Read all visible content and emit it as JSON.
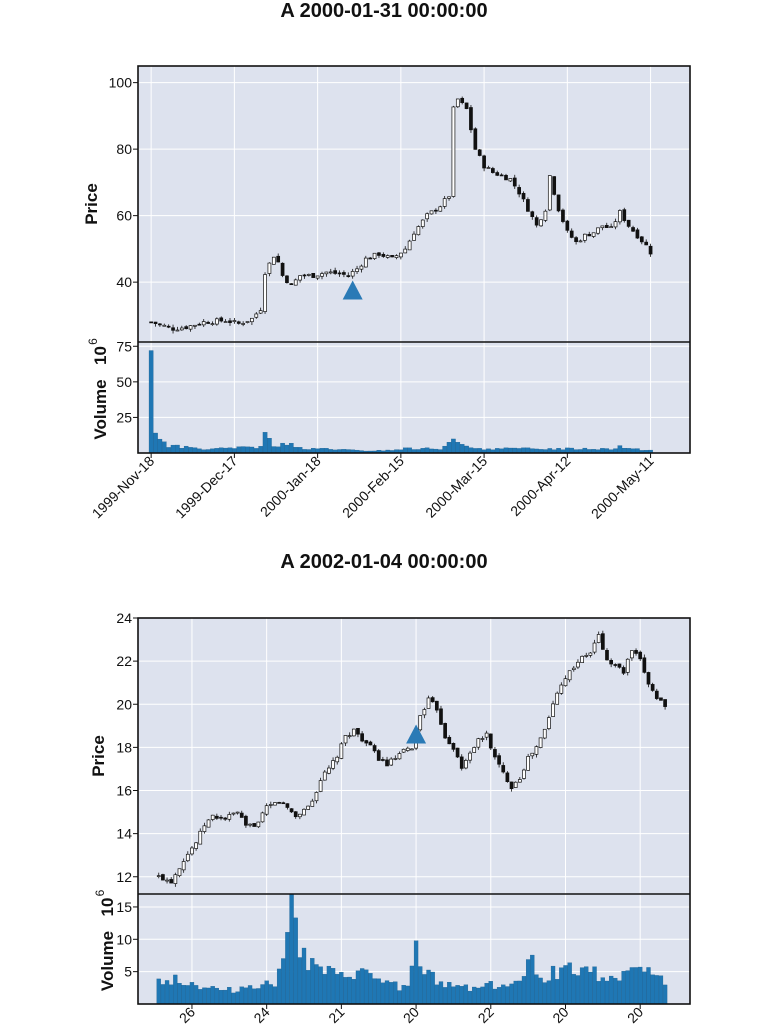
{
  "colors": {
    "panel_bg": "#dde2ee",
    "grid": "#ffffff",
    "candle": "#111111",
    "volume": "#1f77b4",
    "marker": "#2a7ab6"
  },
  "chart_data": [
    {
      "type": "candlestick",
      "title": "A 2000-01-31 00:00:00",
      "ylabel": "Price",
      "volume_label": "Volume",
      "volume_exponent": "10",
      "volume_exponent_power": "6",
      "price_ylim": [
        22,
        105
      ],
      "price_ticks": [
        40,
        60,
        80,
        100
      ],
      "volume_ylim": [
        0,
        78
      ],
      "volume_ticks": [
        25,
        50,
        75
      ],
      "x_range": [
        -3,
        123
      ],
      "x_tick_positions": [
        0,
        19,
        38,
        57,
        76,
        95,
        114
      ],
      "x_tick_labels": [
        "1999-Nov-18",
        "1999-Dec-17",
        "2000-Jan-18",
        "2000-Feb-15",
        "2000-Mar-15",
        "2000-Apr-12",
        "2000-May-11"
      ],
      "marker": {
        "index": 46,
        "price": 37.5
      },
      "price_anchors": [
        [
          0,
          28
        ],
        [
          5,
          26
        ],
        [
          8,
          26.5
        ],
        [
          12,
          28
        ],
        [
          17,
          28.5
        ],
        [
          20,
          27.5
        ],
        [
          23,
          29
        ],
        [
          25,
          32
        ],
        [
          26,
          43
        ],
        [
          28,
          48
        ],
        [
          29,
          46
        ],
        [
          30,
          42
        ],
        [
          32,
          39
        ],
        [
          34,
          42
        ],
        [
          37,
          42
        ],
        [
          40,
          43
        ],
        [
          43,
          42.5
        ],
        [
          45,
          42
        ],
        [
          47,
          44
        ],
        [
          49,
          47
        ],
        [
          52,
          48.5
        ],
        [
          55,
          47
        ],
        [
          58,
          50
        ],
        [
          60,
          55
        ],
        [
          63,
          60
        ],
        [
          66,
          63
        ],
        [
          68,
          66
        ],
        [
          69,
          92
        ],
        [
          70,
          95
        ],
        [
          72,
          92
        ],
        [
          74,
          80
        ],
        [
          76,
          75
        ],
        [
          78,
          73
        ],
        [
          80,
          72
        ],
        [
          82,
          71
        ],
        [
          84,
          67
        ],
        [
          86,
          62
        ],
        [
          88,
          57
        ],
        [
          90,
          62
        ],
        [
          91,
          72
        ],
        [
          93,
          62
        ],
        [
          95,
          55
        ],
        [
          97,
          52
        ],
        [
          99,
          54
        ],
        [
          101,
          55
        ],
        [
          103,
          57
        ],
        [
          105,
          56
        ],
        [
          107,
          61
        ],
        [
          109,
          57
        ],
        [
          111,
          54
        ],
        [
          113,
          51
        ],
        [
          114,
          49
        ]
      ],
      "volume_anchors": [
        [
          0,
          72
        ],
        [
          1,
          17
        ],
        [
          2,
          9
        ],
        [
          3,
          7
        ],
        [
          4,
          5
        ],
        [
          8,
          4
        ],
        [
          12,
          3
        ],
        [
          16,
          3
        ],
        [
          19,
          3
        ],
        [
          21,
          5
        ],
        [
          23,
          4
        ],
        [
          25,
          4
        ],
        [
          26,
          12
        ],
        [
          27,
          9
        ],
        [
          28,
          5
        ],
        [
          30,
          6
        ],
        [
          32,
          7
        ],
        [
          33,
          4
        ],
        [
          35,
          2.5
        ],
        [
          40,
          3
        ],
        [
          45,
          2
        ],
        [
          50,
          1.5
        ],
        [
          55,
          2
        ],
        [
          58,
          3
        ],
        [
          62,
          3
        ],
        [
          66,
          3
        ],
        [
          68,
          9
        ],
        [
          70,
          7
        ],
        [
          72,
          4
        ],
        [
          76,
          3
        ],
        [
          80,
          3
        ],
        [
          85,
          3
        ],
        [
          90,
          3
        ],
        [
          95,
          3
        ],
        [
          100,
          3
        ],
        [
          105,
          3
        ],
        [
          107,
          5
        ],
        [
          109,
          3
        ],
        [
          114,
          2
        ]
      ]
    },
    {
      "type": "candlestick",
      "title": "A 2002-01-04 00:00:00",
      "ylabel": "Price",
      "volume_label": "Volume",
      "volume_exponent": "10",
      "volume_exponent_power": "6",
      "price_ylim": [
        11.2,
        24
      ],
      "price_ticks": [
        12,
        14,
        16,
        18,
        20,
        22,
        24
      ],
      "volume_ylim": [
        0,
        17
      ],
      "volume_ticks": [
        5,
        10,
        15
      ],
      "x_range": [
        -5,
        128
      ],
      "x_tick_positions": [
        8,
        26,
        44,
        62,
        80,
        98,
        116
      ],
      "x_tick_labels": [
        "26",
        "24",
        "21",
        "20",
        "22",
        "20",
        "20"
      ],
      "marker": {
        "index": 62,
        "price": 18.6
      },
      "price_anchors": [
        [
          0,
          12
        ],
        [
          3,
          11.8
        ],
        [
          6,
          12.8
        ],
        [
          9,
          13.6
        ],
        [
          11,
          14.4
        ],
        [
          13,
          14.8
        ],
        [
          16,
          14.7
        ],
        [
          19,
          15
        ],
        [
          21,
          14.3
        ],
        [
          24,
          14.5
        ],
        [
          26,
          15.2
        ],
        [
          29,
          15.5
        ],
        [
          31,
          15.2
        ],
        [
          33,
          14.8
        ],
        [
          35,
          15.1
        ],
        [
          37,
          15.5
        ],
        [
          39,
          16.5
        ],
        [
          41,
          17
        ],
        [
          43,
          17.6
        ],
        [
          45,
          18.5
        ],
        [
          47,
          18.8
        ],
        [
          49,
          18.4
        ],
        [
          51,
          18
        ],
        [
          53,
          17.5
        ],
        [
          55,
          17.2
        ],
        [
          57,
          17.5
        ],
        [
          59,
          17.8
        ],
        [
          61,
          18
        ],
        [
          63,
          19.5
        ],
        [
          65,
          20.2
        ],
        [
          67,
          19.8
        ],
        [
          69,
          18.5
        ],
        [
          71,
          18
        ],
        [
          73,
          17
        ],
        [
          75,
          17.8
        ],
        [
          77,
          18.3
        ],
        [
          79,
          18.6
        ],
        [
          81,
          17.5
        ],
        [
          83,
          16.8
        ],
        [
          85,
          16.2
        ],
        [
          87,
          16.6
        ],
        [
          89,
          17.5
        ],
        [
          91,
          18
        ],
        [
          93,
          18.8
        ],
        [
          95,
          20
        ],
        [
          97,
          21
        ],
        [
          99,
          21.5
        ],
        [
          101,
          22
        ],
        [
          104,
          22.4
        ],
        [
          106,
          23.2
        ],
        [
          108,
          22
        ],
        [
          110,
          21.8
        ],
        [
          112,
          21.5
        ],
        [
          114,
          22.5
        ],
        [
          116,
          22
        ],
        [
          118,
          21
        ],
        [
          120,
          20.3
        ],
        [
          122,
          20
        ]
      ],
      "volume_anchors": [
        [
          0,
          3.5
        ],
        [
          4,
          4
        ],
        [
          8,
          3
        ],
        [
          12,
          2.5
        ],
        [
          16,
          2
        ],
        [
          20,
          2.5
        ],
        [
          24,
          3
        ],
        [
          28,
          3
        ],
        [
          32,
          15
        ],
        [
          33,
          16
        ],
        [
          34,
          9
        ],
        [
          36,
          6
        ],
        [
          40,
          5
        ],
        [
          44,
          4
        ],
        [
          48,
          5
        ],
        [
          52,
          4
        ],
        [
          56,
          3
        ],
        [
          60,
          2.5
        ],
        [
          62,
          8
        ],
        [
          64,
          5
        ],
        [
          68,
          3
        ],
        [
          72,
          3
        ],
        [
          76,
          2.5
        ],
        [
          80,
          3
        ],
        [
          84,
          3
        ],
        [
          88,
          3.5
        ],
        [
          90,
          8
        ],
        [
          92,
          4
        ],
        [
          96,
          5
        ],
        [
          100,
          6
        ],
        [
          104,
          5
        ],
        [
          108,
          4
        ],
        [
          112,
          5
        ],
        [
          116,
          6
        ],
        [
          120,
          4
        ],
        [
          124,
          3
        ]
      ]
    }
  ]
}
